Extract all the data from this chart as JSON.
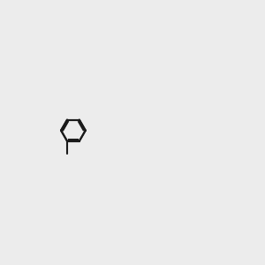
{
  "bg_color": "#ececec",
  "bond_color": "#1a1a1a",
  "N_color": "#0000ff",
  "O_color": "#ff0000",
  "H_color": "#4a9090",
  "figsize": [
    3.0,
    3.0
  ],
  "dpi": 100
}
